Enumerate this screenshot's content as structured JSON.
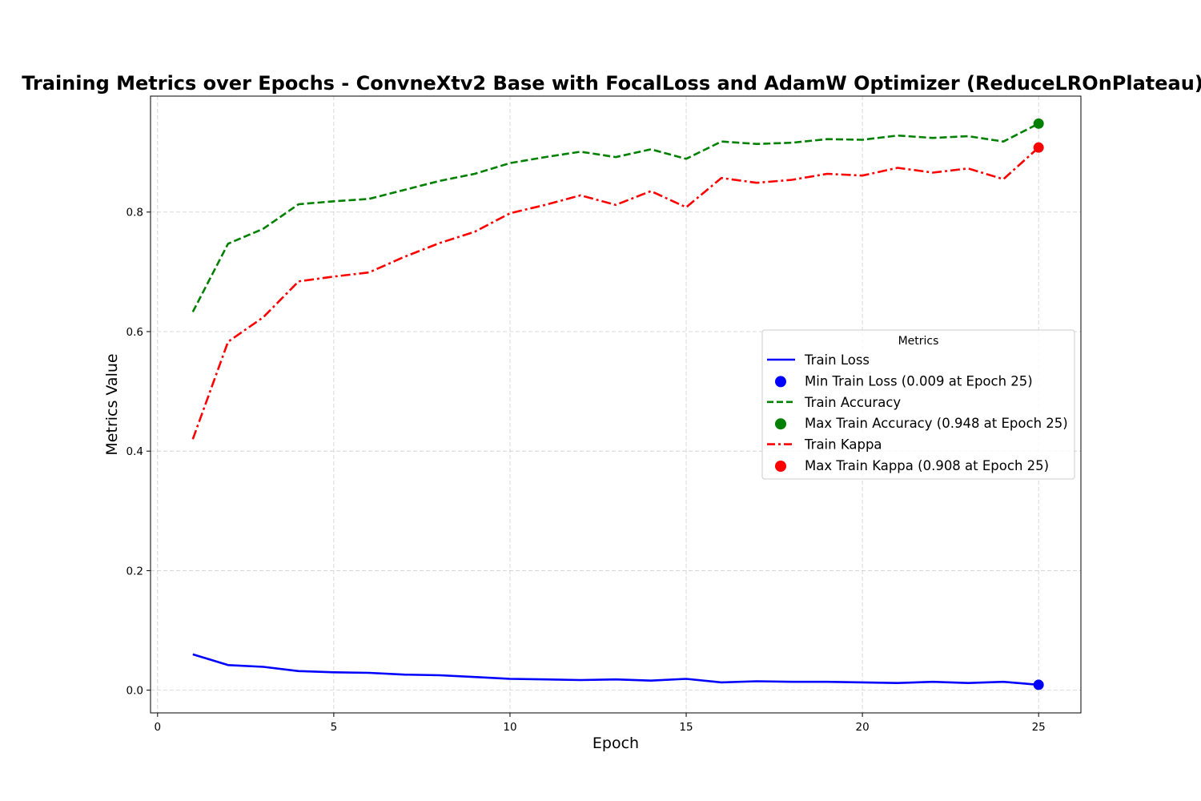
{
  "chart_data": {
    "type": "line",
    "title": "Training Metrics over Epochs - ConvneXtv2 Base with FocalLoss and AdamW Optimizer (ReduceLROnPlateau)",
    "xlabel": "Epoch",
    "ylabel": "Metrics Value",
    "xlim": [
      -0.2,
      26.2
    ],
    "ylim": [
      -0.038,
      0.994
    ],
    "xticks": [
      0,
      5,
      10,
      15,
      20,
      25
    ],
    "yticks": [
      0.0,
      0.2,
      0.4,
      0.6,
      0.8
    ],
    "grid": true,
    "legend_title": "Metrics",
    "legend_position": "center-right",
    "x": [
      1,
      2,
      3,
      4,
      5,
      6,
      7,
      8,
      9,
      10,
      11,
      12,
      13,
      14,
      15,
      16,
      17,
      18,
      19,
      20,
      21,
      22,
      23,
      24,
      25
    ],
    "series": [
      {
        "name": "Train Loss",
        "color": "#0000ff",
        "style": "solid",
        "values": [
          0.06,
          0.042,
          0.039,
          0.032,
          0.03,
          0.029,
          0.026,
          0.025,
          0.022,
          0.019,
          0.018,
          0.017,
          0.018,
          0.016,
          0.019,
          0.013,
          0.015,
          0.014,
          0.014,
          0.013,
          0.012,
          0.014,
          0.012,
          0.014,
          0.009
        ],
        "marker": {
          "label": "Min Train Loss (0.009 at Epoch 25)",
          "x": 25,
          "y": 0.009
        }
      },
      {
        "name": "Train Accuracy",
        "color": "#008000",
        "style": "dashed",
        "values": [
          0.633,
          0.747,
          0.772,
          0.813,
          0.818,
          0.822,
          0.837,
          0.852,
          0.864,
          0.882,
          0.892,
          0.901,
          0.892,
          0.905,
          0.889,
          0.918,
          0.914,
          0.916,
          0.922,
          0.921,
          0.928,
          0.924,
          0.927,
          0.918,
          0.948
        ],
        "marker": {
          "label": "Max Train Accuracy (0.948 at Epoch 25)",
          "x": 25,
          "y": 0.948
        }
      },
      {
        "name": "Train Kappa",
        "color": "#ff0000",
        "style": "dashdot",
        "values": [
          0.42,
          0.583,
          0.624,
          0.684,
          0.692,
          0.699,
          0.725,
          0.748,
          0.767,
          0.798,
          0.812,
          0.828,
          0.812,
          0.835,
          0.808,
          0.857,
          0.849,
          0.854,
          0.864,
          0.861,
          0.874,
          0.866,
          0.873,
          0.855,
          0.908
        ],
        "marker": {
          "label": "Max Train Kappa (0.908 at Epoch 25)",
          "x": 25,
          "y": 0.908
        }
      }
    ]
  }
}
